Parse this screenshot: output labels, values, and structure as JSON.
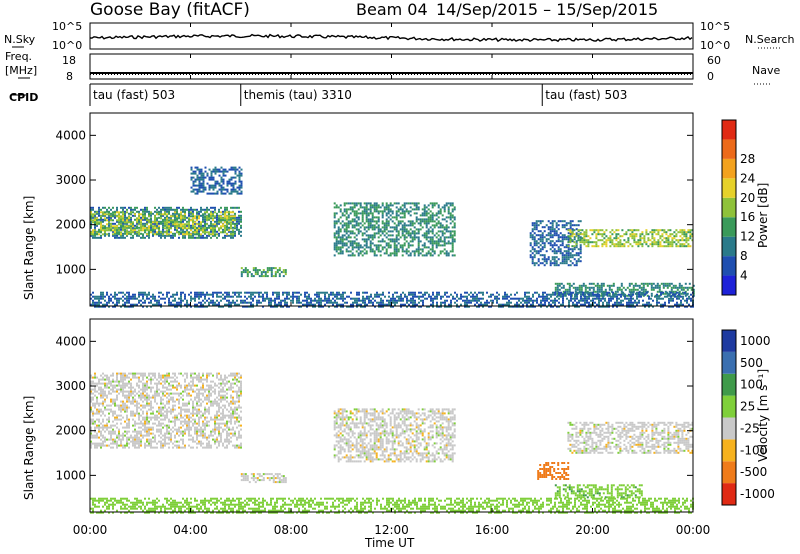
{
  "header": {
    "station": "Goose Bay (fitACF)",
    "beam": "Beam 04",
    "date_range": "14/Sep/2015 – 15/Sep/2015"
  },
  "strips": {
    "nsky_label": "N.Sky",
    "nsky_ticks": [
      "10^5",
      "10^0"
    ],
    "nsearch_label": "N.Search",
    "nsearch_ticks": [
      "10^5",
      "10^0"
    ],
    "freq_label_1": "Freq.",
    "freq_label_2": "[MHz]",
    "freq_ticks": [
      "18",
      "8"
    ],
    "nave_label": "Nave",
    "nave_ticks": [
      "60",
      "0"
    ],
    "cpid_label": "CPID",
    "cpid_segments": [
      {
        "start_hour": 0,
        "label": "tau (fast) 503"
      },
      {
        "start_hour": 6,
        "label": "themis (tau) 3310"
      },
      {
        "start_hour": 18,
        "label": "tau (fast) 503"
      }
    ]
  },
  "axes": {
    "x_ticks": [
      "00:00",
      "04:00",
      "08:00",
      "12:00",
      "16:00",
      "20:00",
      "00:00"
    ],
    "x_label": "Time UT",
    "y_ticks": [
      "1000",
      "2000",
      "3000",
      "4000"
    ],
    "y_label": "Slant Range [km]"
  },
  "power_scale": {
    "label": "Power [dB]",
    "ticks": [
      "4",
      "8",
      "12",
      "16",
      "20",
      "24",
      "28"
    ],
    "colors": [
      "#1e22d8",
      "#1f4fb0",
      "#2a7a8a",
      "#3a9a5a",
      "#8fc23a",
      "#e6d12a",
      "#f3a21e",
      "#ec6a1a",
      "#e02a14"
    ]
  },
  "velocity_scale": {
    "label": "Velocity [m s⁻¹]",
    "ticks": [
      "1000",
      "500",
      "100",
      "25",
      "-25",
      "-100",
      "-500",
      "-1000"
    ],
    "colors": [
      "#1e3aa0",
      "#3a6fb0",
      "#3f9a4a",
      "#7fcf3a",
      "#c9c9c9",
      "#f6b21e",
      "#ef7b1a",
      "#e02a14"
    ]
  },
  "chart_data": [
    {
      "type": "heatmap",
      "panel": "power",
      "xlabel": "Time UT",
      "ylabel": "Slant Range [km]",
      "xlim": [
        0,
        24
      ],
      "ylim": [
        180,
        4500
      ],
      "clim": [
        0,
        30
      ],
      "colorbar_label": "Power [dB]",
      "echo_regions": [
        {
          "t_start": 0.0,
          "t_end": 6.0,
          "range_start_km": 1700,
          "range_end_km": 2400,
          "power_db": 10
        },
        {
          "t_start": 0.0,
          "t_end": 5.8,
          "range_start_km": 1800,
          "range_end_km": 2300,
          "power_db": 18
        },
        {
          "t_start": 4.0,
          "t_end": 6.0,
          "range_start_km": 2700,
          "range_end_km": 3300,
          "power_db": 8
        },
        {
          "t_start": 6.0,
          "t_end": 7.8,
          "range_start_km": 850,
          "range_end_km": 1050,
          "power_db": 14
        },
        {
          "t_start": 9.7,
          "t_end": 14.5,
          "range_start_km": 1300,
          "range_end_km": 2500,
          "power_db": 12
        },
        {
          "t_start": 17.5,
          "t_end": 19.5,
          "range_start_km": 1100,
          "range_end_km": 2100,
          "power_db": 8
        },
        {
          "t_start": 19.0,
          "t_end": 24.0,
          "range_start_km": 1500,
          "range_end_km": 1900,
          "power_db": 18
        },
        {
          "t_start": 18.5,
          "t_end": 24.0,
          "range_start_km": 400,
          "range_end_km": 700,
          "power_db": 12
        },
        {
          "t_start": 0.0,
          "t_end": 24.0,
          "range_start_km": 180,
          "range_end_km": 500,
          "power_db": 8
        }
      ]
    },
    {
      "type": "heatmap",
      "panel": "velocity",
      "xlabel": "Time UT",
      "ylabel": "Slant Range [km]",
      "xlim": [
        0,
        24
      ],
      "ylim": [
        180,
        4500
      ],
      "clim": [
        -1000,
        1000
      ],
      "colorbar_label": "Velocity [m s⁻¹]",
      "echo_regions": [
        {
          "t_start": 0.0,
          "t_end": 6.0,
          "range_start_km": 1600,
          "range_end_km": 3300,
          "velocity_ms": 0
        },
        {
          "t_start": 6.0,
          "t_end": 7.8,
          "range_start_km": 850,
          "range_end_km": 1050,
          "velocity_ms": 0
        },
        {
          "t_start": 9.7,
          "t_end": 14.5,
          "range_start_km": 1300,
          "range_end_km": 2500,
          "velocity_ms": 0
        },
        {
          "t_start": 17.8,
          "t_end": 19.0,
          "range_start_km": 900,
          "range_end_km": 1300,
          "velocity_ms": -400
        },
        {
          "t_start": 19.0,
          "t_end": 24.0,
          "range_start_km": 1500,
          "range_end_km": 2200,
          "velocity_ms": 0
        },
        {
          "t_start": 18.5,
          "t_end": 22.0,
          "range_start_km": 500,
          "range_end_km": 800,
          "velocity_ms": 80
        },
        {
          "t_start": 0.0,
          "t_end": 24.0,
          "range_start_km": 180,
          "range_end_km": 500,
          "velocity_ms": 60
        }
      ]
    }
  ]
}
